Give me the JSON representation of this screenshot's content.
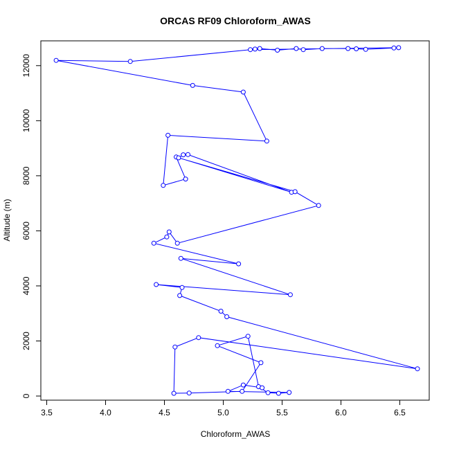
{
  "chart_data": {
    "type": "line",
    "title": "ORCAS RF09 Chloroform_AWAS",
    "xlabel": "Chloroform_AWAS",
    "ylabel": "Altitude (m)",
    "xlim": [
      3.45,
      6.75
    ],
    "ylim": [
      -150,
      12900
    ],
    "xticks": [
      3.5,
      4.0,
      4.5,
      5.0,
      5.5,
      6.0,
      6.5
    ],
    "xtick_labels": [
      "3.5",
      "4.0",
      "4.5",
      "5.0",
      "5.5",
      "6.0",
      "6.5"
    ],
    "yticks": [
      0,
      2000,
      4000,
      6000,
      8000,
      10000,
      12000
    ],
    "ytick_labels": [
      "0",
      "2000",
      "4000",
      "6000",
      "8000",
      "10000",
      "12000"
    ],
    "grid": false,
    "color": "#0000ff",
    "marker": "open-circle",
    "series": [
      {
        "x": [
          5.27,
          5.31,
          5.46,
          5.62,
          5.68,
          5.84,
          6.06,
          6.13,
          6.21,
          6.45,
          6.49,
          5.23,
          4.21,
          3.58,
          4.74,
          5.17,
          5.37,
          4.53,
          4.49,
          4.68,
          4.6,
          5.58,
          4.7,
          4.66,
          4.62,
          5.61,
          5.81,
          4.61,
          4.54,
          4.52,
          4.41,
          5.13,
          4.64,
          5.57,
          4.43,
          4.65,
          4.63,
          4.98,
          5.03,
          6.65,
          4.79,
          4.59,
          4.58,
          4.71,
          5.16,
          5.32,
          4.95,
          5.21,
          5.3,
          5.38,
          5.47,
          5.56,
          5.04,
          5.17,
          5.33
        ],
        "y": [
          12600,
          12620,
          12560,
          12620,
          12580,
          12620,
          12620,
          12610,
          12590,
          12640,
          12650,
          12580,
          12150,
          12190,
          11280,
          11040,
          9260,
          9470,
          7650,
          7880,
          8680,
          7400,
          8770,
          8760,
          8650,
          7420,
          6920,
          5550,
          5960,
          5780,
          5550,
          4800,
          5000,
          3680,
          4050,
          3940,
          3650,
          3080,
          2880,
          990,
          2120,
          1780,
          100,
          110,
          170,
          1210,
          1830,
          2170,
          340,
          120,
          100,
          130,
          170,
          400,
          300
        ]
      }
    ]
  }
}
